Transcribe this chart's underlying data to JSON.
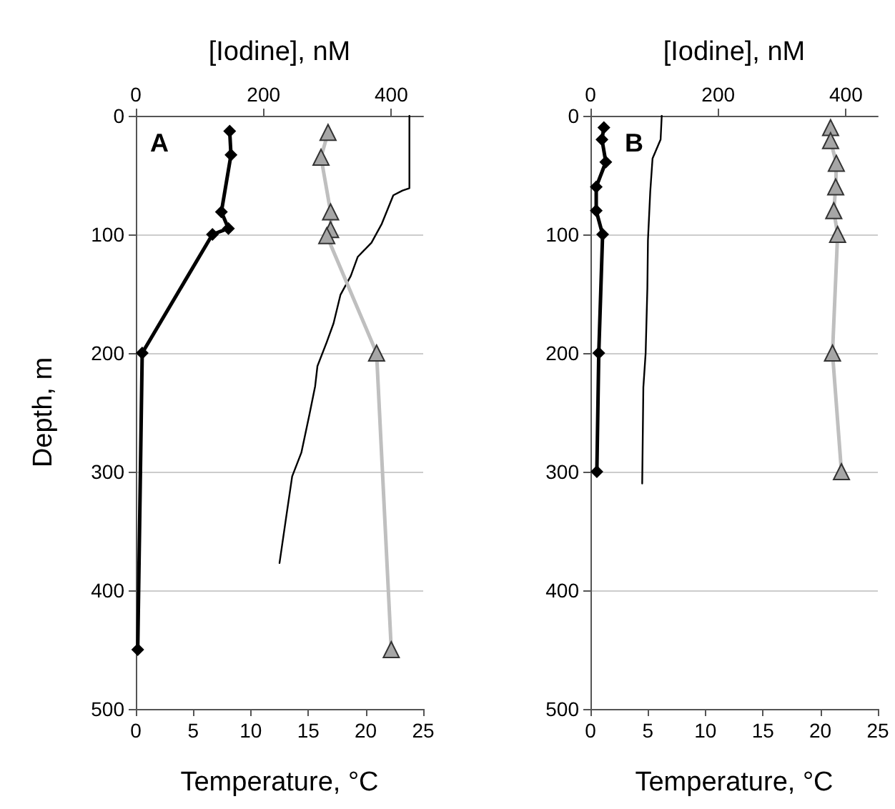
{
  "chart_data": [
    {
      "type": "line",
      "xlabel": "Temperature, °C",
      "x2label": "[Iodine], nM",
      "ylabel": "Depth, m",
      "annotations": [
        "A"
      ],
      "xlim": [
        0,
        25
      ],
      "xticks": [
        0,
        5,
        10,
        15,
        20,
        25
      ],
      "x2lim": [
        0,
        450
      ],
      "x2ticks": [
        0,
        200,
        400
      ],
      "ylim": [
        500,
        0
      ],
      "yticks": [
        0,
        100,
        200,
        300,
        400,
        500
      ],
      "grid": "y",
      "line_style": "solid",
      "series": [
        {
          "color": "#000000",
          "axis": "x2",
          "marker": "diamond",
          "x": [
            147,
            149,
            134,
            145,
            120,
            10,
            3
          ],
          "values": [
            13,
            33,
            81,
            95,
            100,
            200,
            450
          ]
        },
        {
          "color": "#bfbfbf",
          "axis": "x2",
          "marker": "triangle",
          "x": [
            301,
            290,
            305,
            305,
            299,
            377,
            400
          ],
          "values": [
            14,
            35,
            81,
            96,
            101,
            200,
            450
          ]
        },
        {
          "color": "#000000",
          "marker": "none",
          "x": [
            23.8,
            23.8,
            23.2,
            22.4,
            21.4,
            20.5,
            19.3,
            18.7,
            17.8,
            17.2,
            16.6,
            15.8,
            15.6,
            15.1,
            14.4,
            13.6,
            13.1,
            12.5
          ],
          "values": [
            0,
            61,
            63,
            67,
            91,
            107,
            119,
            135,
            151,
            175,
            191,
            211,
            228,
            252,
            284,
            304,
            337,
            377
          ]
        }
      ]
    },
    {
      "type": "line",
      "xlabel": "Temperature, °C",
      "x2label": "[Iodine], nM",
      "annotations": [
        "B"
      ],
      "xlim": [
        0,
        25
      ],
      "xticks": [
        0,
        5,
        10,
        15,
        20,
        25
      ],
      "x2lim": [
        0,
        450
      ],
      "x2ticks": [
        0,
        200,
        400
      ],
      "ylim": [
        500,
        0
      ],
      "yticks": [
        0,
        100,
        200,
        300,
        400,
        500
      ],
      "grid": "y",
      "line_style": "solid",
      "series": [
        {
          "color": "#000000",
          "axis": "x2",
          "marker": "diamond",
          "x": [
            21,
            18,
            24,
            9,
            9,
            19,
            13,
            10
          ],
          "values": [
            10,
            20,
            39,
            60,
            80,
            100,
            200,
            300
          ]
        },
        {
          "color": "#bfbfbf",
          "axis": "x2",
          "marker": "triangle",
          "x": [
            376,
            376,
            385,
            384,
            381,
            387,
            379,
            393
          ],
          "values": [
            10,
            21,
            40,
            60,
            80,
            100,
            200,
            300
          ]
        },
        {
          "color": "#000000",
          "marker": "none",
          "x": [
            6.2,
            6.1,
            5.4,
            5.2,
            5.0,
            4.95,
            4.8,
            4.6,
            4.5
          ],
          "values": [
            0,
            20,
            36,
            64,
            105,
            145,
            200,
            229,
            310
          ]
        }
      ]
    }
  ]
}
